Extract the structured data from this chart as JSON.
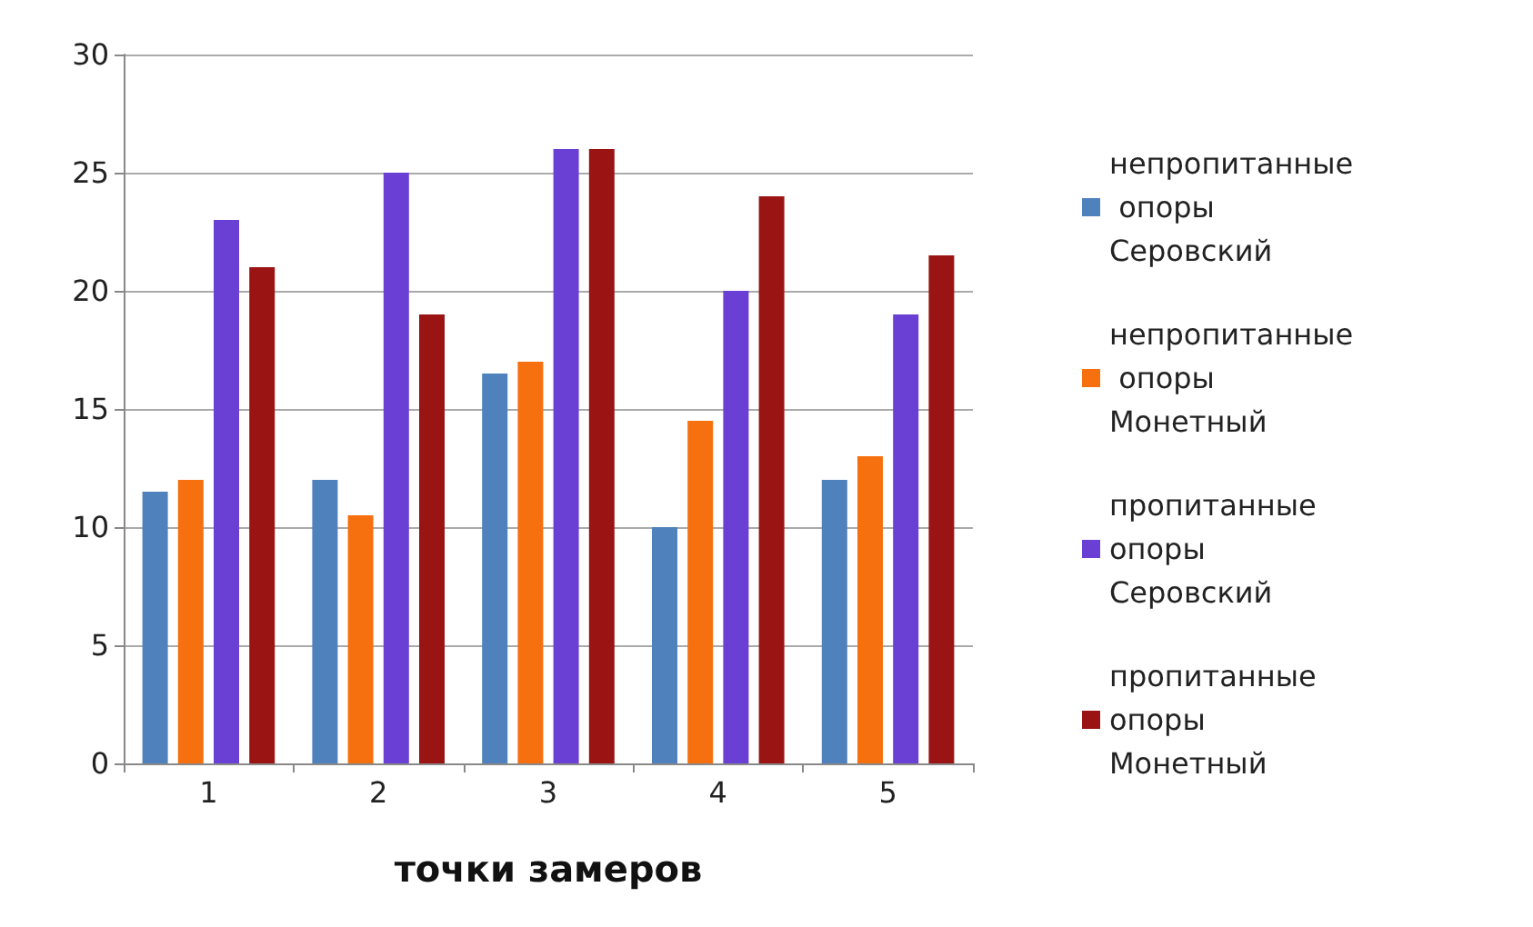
{
  "chart_data": {
    "type": "bar",
    "xlabel": "точки замеров",
    "categories": [
      "1",
      "2",
      "3",
      "4",
      "5"
    ],
    "series": [
      {
        "name": "непропитанные опоры Серовский",
        "color": "#4f81bd",
        "values": [
          11.5,
          12,
          16.5,
          10,
          12
        ]
      },
      {
        "name": "непропитанные опоры Монетный",
        "color": "#f7700f",
        "values": [
          12,
          10.5,
          17,
          14.5,
          13
        ]
      },
      {
        "name": "пропитанные опоры Серовский",
        "color": "#6a3fd4",
        "values": [
          23,
          25,
          26,
          20,
          19
        ]
      },
      {
        "name": "пропитанные опоры Монетный",
        "color": "#9a1414",
        "values": [
          21,
          19,
          26,
          24,
          21.5
        ]
      }
    ],
    "ylim": [
      0,
      30
    ],
    "yticks": [
      0,
      5,
      10,
      15,
      20,
      25,
      30
    ],
    "grid": "y",
    "legend": "right"
  }
}
